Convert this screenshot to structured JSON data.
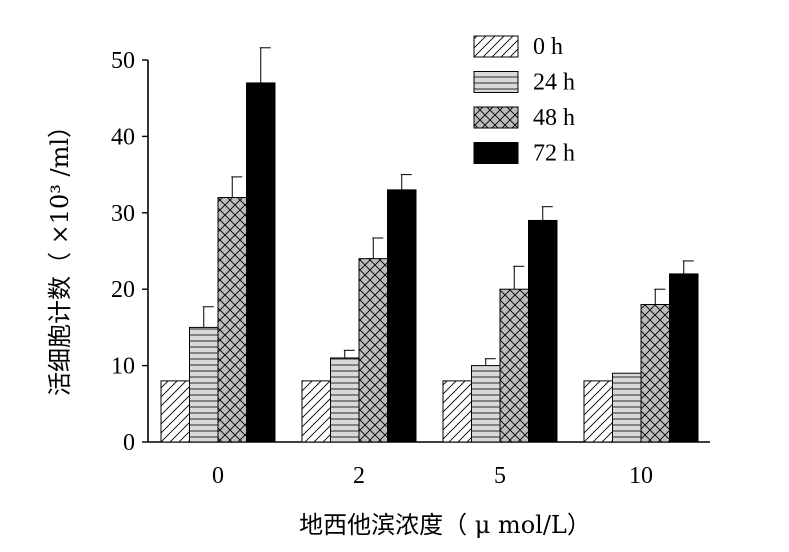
{
  "chart_data": {
    "type": "bar",
    "xlabel": "地西他滨浓度（ μ mol/L）",
    "ylabel": "活细胞计数（ ×10³ /ml）",
    "categories": [
      "0",
      "2",
      "5",
      "10"
    ],
    "ylim": [
      0,
      50
    ],
    "yticks": [
      0,
      10,
      20,
      30,
      40,
      50
    ],
    "grid": false,
    "legend_position": "top-right",
    "series": [
      {
        "name": "0 h",
        "values": [
          8,
          8,
          8,
          8
        ],
        "errors": [
          0,
          0,
          0,
          0
        ],
        "pattern": "diagonal"
      },
      {
        "name": "24 h",
        "values": [
          15,
          11,
          10,
          9
        ],
        "errors": [
          2.7,
          1.0,
          0.9,
          0
        ],
        "pattern": "horizontal"
      },
      {
        "name": "48 h",
        "values": [
          32,
          24,
          20,
          18
        ],
        "errors": [
          2.7,
          2.7,
          3.0,
          2.0
        ],
        "pattern": "crosshatch"
      },
      {
        "name": "72 h",
        "values": [
          47,
          33,
          29,
          22
        ],
        "errors": [
          4.6,
          2.0,
          1.8,
          1.7
        ],
        "pattern": "solid"
      }
    ]
  }
}
